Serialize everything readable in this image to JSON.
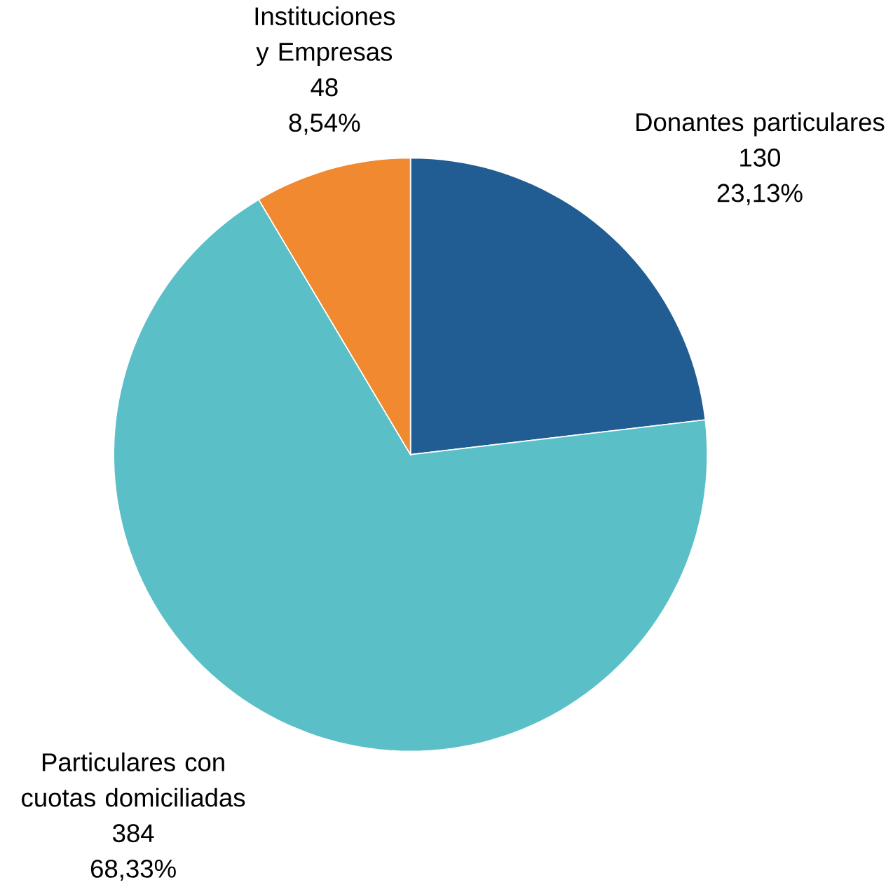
{
  "chart_data": {
    "type": "pie",
    "categories": [
      "Donantes particulares",
      "Particulares con cuotas domiciliadas",
      "Instituciones y Empresas"
    ],
    "values": [
      130,
      384,
      48
    ],
    "colors": [
      "#215d92",
      "#5bbfc7",
      "#f0892f"
    ],
    "value_labels": [
      "130",
      "384",
      "48"
    ],
    "annotations": [
      "23,13%",
      "68,33%",
      "8,54%"
    ]
  }
}
